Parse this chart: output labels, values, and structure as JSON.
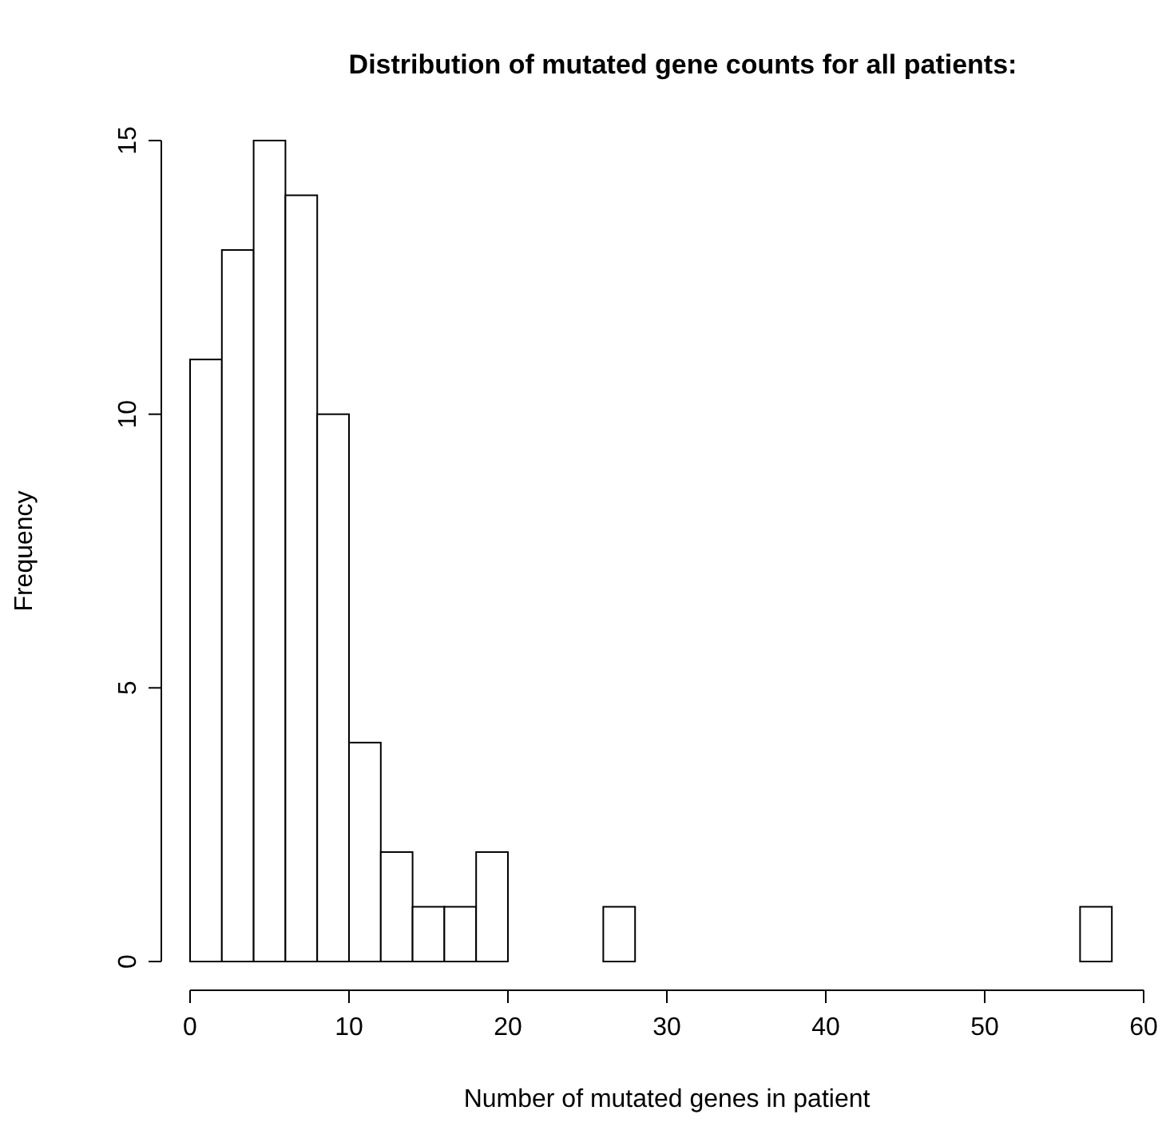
{
  "chart_data": {
    "type": "histogram",
    "title": "Distribution of mutated gene counts for all patients:",
    "xlabel": "Number of mutated genes in patient",
    "ylabel": "Frequency",
    "bins": [
      0,
      2,
      4,
      6,
      8,
      10,
      12,
      14,
      16,
      18,
      20,
      22,
      24,
      26,
      28,
      30,
      32,
      34,
      36,
      38,
      40,
      42,
      44,
      46,
      48,
      50,
      52,
      54,
      56,
      58
    ],
    "values": [
      11,
      13,
      15,
      14,
      10,
      4,
      2,
      1,
      1,
      2,
      0,
      0,
      0,
      1,
      0,
      0,
      0,
      0,
      0,
      0,
      0,
      0,
      0,
      0,
      0,
      0,
      0,
      0,
      1
    ],
    "color": "#ffffff",
    "xlim": [
      0,
      60
    ],
    "xticks": [
      0,
      10,
      20,
      30,
      40,
      50,
      60
    ],
    "ylim": [
      0,
      15
    ],
    "yticks": [
      0,
      5,
      10,
      15
    ],
    "grid": false
  }
}
